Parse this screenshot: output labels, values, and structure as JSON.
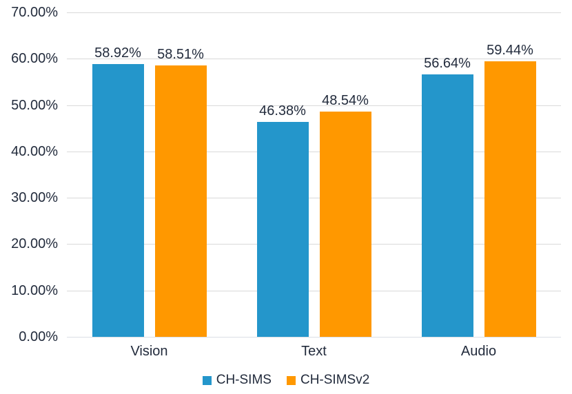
{
  "chart_data": {
    "type": "bar",
    "title": "",
    "xlabel": "",
    "ylabel": "",
    "categories": [
      "Vision",
      "Text",
      "Audio"
    ],
    "series": [
      {
        "name": "CH-SIMS",
        "color": "#2496CB",
        "values": [
          58.92,
          46.38,
          56.64
        ],
        "labels": [
          "58.92%",
          "46.38%",
          "56.64%"
        ]
      },
      {
        "name": "CH-SIMSv2",
        "color": "#FF9800",
        "values": [
          58.51,
          48.54,
          59.44
        ],
        "labels": [
          "58.51%",
          "48.54%",
          "59.44%"
        ]
      }
    ],
    "ylim": [
      0,
      70
    ],
    "yticks": [
      {
        "value": 0,
        "label": "0.00%"
      },
      {
        "value": 10,
        "label": "10.00%"
      },
      {
        "value": 20,
        "label": "20.00%"
      },
      {
        "value": 30,
        "label": "30.00%"
      },
      {
        "value": 40,
        "label": "40.00%"
      },
      {
        "value": 50,
        "label": "50.00%"
      },
      {
        "value": 60,
        "label": "60.00%"
      },
      {
        "value": 70,
        "label": "70.00%"
      }
    ],
    "grid": true,
    "legend_position": "bottom"
  },
  "colors": {
    "background": "#FFFFFF",
    "grid": "#D9D9D9",
    "axis": "#DADEE5",
    "text": "#222B3C",
    "series_blue": "#2496CB",
    "series_orange": "#FF9800"
  }
}
